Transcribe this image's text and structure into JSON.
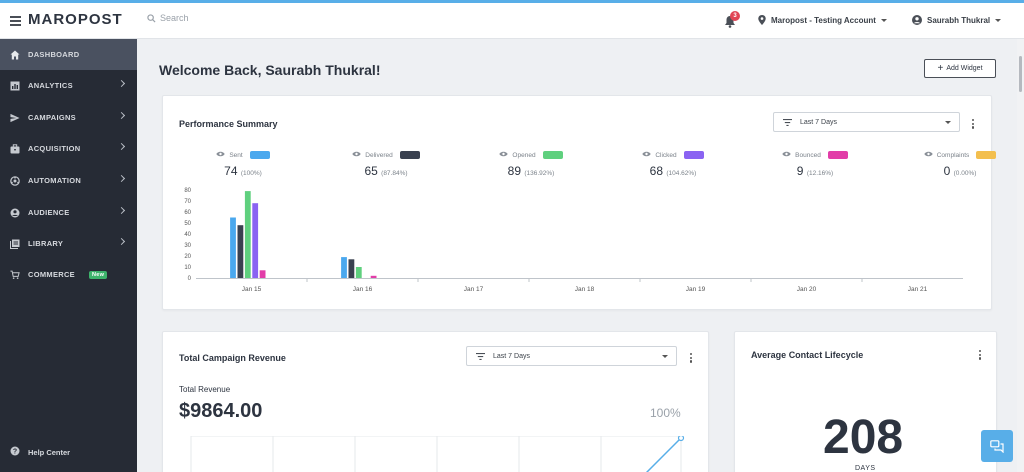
{
  "app": {
    "logo": "MAROPOST"
  },
  "topbar": {
    "search_placeholder": "Search",
    "notifications_count": "3",
    "account_name": "Maropost - Testing Account",
    "user_name": "Saurabh Thukral"
  },
  "sidebar": {
    "items": [
      {
        "label": "DASHBOARD",
        "icon": "home-icon",
        "active": true
      },
      {
        "label": "ANALYTICS",
        "icon": "analytics-icon"
      },
      {
        "label": "CAMPAIGNS",
        "icon": "send-icon"
      },
      {
        "label": "ACQUISITION",
        "icon": "briefcase-icon"
      },
      {
        "label": "AUTOMATION",
        "icon": "automation-icon"
      },
      {
        "label": "AUDIENCE",
        "icon": "user-circle-icon"
      },
      {
        "label": "LIBRARY",
        "icon": "library-icon"
      },
      {
        "label": "COMMERCE",
        "icon": "cart-icon",
        "badge": "New"
      }
    ],
    "help": "Help Center"
  },
  "main": {
    "welcome": "Welcome Back, Saurabh Thukral!",
    "add_widget": "Add Widget"
  },
  "performance": {
    "title": "Performance Summary",
    "range": "Last 7 Days",
    "metrics": [
      {
        "label": "Sent",
        "value": "74",
        "pct": "(100%)",
        "color": "#4aa8ee"
      },
      {
        "label": "Delivered",
        "value": "65",
        "pct": "(87.84%)",
        "color": "#3a4150"
      },
      {
        "label": "Opened",
        "value": "89",
        "pct": "(136.92%)",
        "color": "#5fd07e"
      },
      {
        "label": "Clicked",
        "value": "68",
        "pct": "(104.62%)",
        "color": "#8a63f2"
      },
      {
        "label": "Bounced",
        "value": "9",
        "pct": "(12.16%)",
        "color": "#e23da8"
      },
      {
        "label": "Complaints",
        "value": "0",
        "pct": "(0.00%)",
        "color": "#f3bf4e"
      }
    ]
  },
  "chart_data": {
    "type": "bar",
    "categories": [
      "Jan 15",
      "Jan 16",
      "Jan 17",
      "Jan 18",
      "Jan 19",
      "Jan 20",
      "Jan 21"
    ],
    "ylim": [
      0,
      80
    ],
    "yticks": [
      "0",
      "10",
      "20",
      "30",
      "40",
      "50",
      "60",
      "70",
      "80"
    ],
    "grid": false,
    "series": [
      {
        "name": "Sent",
        "color": "#4aa8ee",
        "values": [
          55,
          19,
          0,
          0,
          0,
          0,
          0
        ]
      },
      {
        "name": "Delivered",
        "color": "#3a4150",
        "values": [
          48,
          17,
          0,
          0,
          0,
          0,
          0
        ]
      },
      {
        "name": "Opened",
        "color": "#5fd07e",
        "values": [
          79,
          10,
          0,
          0,
          0,
          0,
          0
        ]
      },
      {
        "name": "Clicked",
        "color": "#8a63f2",
        "values": [
          68,
          0,
          0,
          0,
          0,
          0,
          0
        ]
      },
      {
        "name": "Bounced",
        "color": "#e23da8",
        "values": [
          7,
          2,
          0,
          0,
          0,
          0,
          0
        ]
      },
      {
        "name": "Complaints",
        "color": "#f3bf4e",
        "values": [
          0,
          0,
          0,
          0,
          0,
          0,
          0
        ]
      }
    ]
  },
  "revenue": {
    "title": "Total Campaign Revenue",
    "range": "Last 7 Days",
    "label": "Total Revenue",
    "value": "$9864.00",
    "pct": "100%"
  },
  "lifecycle": {
    "title": "Average Contact Lifecycle",
    "value": "208",
    "unit": "DAYS"
  }
}
